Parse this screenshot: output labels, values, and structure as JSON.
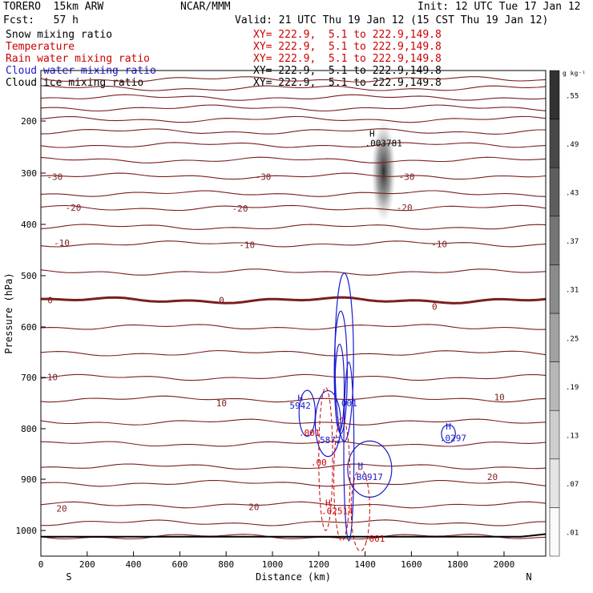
{
  "header": {
    "model": "TORERO  15km ARW",
    "org": "NCAR/MMM",
    "init": "Init: 12 UTC Tue 17 Jan 12",
    "fcst": "Fcst:   57 h",
    "valid": "Valid: 21 UTC Thu 19 Jan 12 (15 CST Thu 19 Jan 12)"
  },
  "fields": [
    {
      "name": "Snow mixing ratio",
      "xy": "XY= 222.9,  5.1 to 222.9,149.8",
      "color": "#000000"
    },
    {
      "name": "Temperature",
      "xy": "XY= 222.9,  5.1 to 222.9,149.8",
      "color": "#cc0000"
    },
    {
      "name": "Rain water mixing ratio",
      "xy": "XY= 222.9,  5.1 to 222.9,149.8",
      "color": "#cc0000"
    },
    {
      "name": "Cloud water mixing ratio",
      "xy": "XY= 222.9,  5.1 to 222.9,149.8",
      "color": "#1a1acc"
    },
    {
      "name": "Cloud ice mixing ratio",
      "xy": "XY= 222.9,  5.1 to 222.9,149.8",
      "color": "#000000"
    }
  ],
  "chart_data": {
    "type": "cross-section contour",
    "xlabel": "Distance (km)",
    "ylabel": "Pressure (hPa)",
    "xlim": [
      0,
      2180
    ],
    "ylim": [
      1045,
      105
    ],
    "x_ticks": [
      0,
      200,
      400,
      600,
      800,
      1000,
      1200,
      1400,
      1600,
      1800,
      2000
    ],
    "y_ticks": [
      200,
      300,
      400,
      500,
      600,
      700,
      800,
      900,
      1000
    ],
    "x_end_labels": {
      "left": "S",
      "right": "N"
    },
    "temperature_isotherms": [
      {
        "p": 1012,
        "label": "",
        "bold": false
      },
      {
        "p": 985,
        "label": "",
        "bold": false
      },
      {
        "p": 950,
        "label": "20",
        "bold": false
      },
      {
        "p": 908,
        "label": "",
        "bold": false
      },
      {
        "p": 875,
        "label": "20",
        "bold": false
      },
      {
        "p": 830,
        "label": "",
        "bold": false
      },
      {
        "p": 787,
        "label": "",
        "bold": false
      },
      {
        "p": 742,
        "label": "10",
        "bold": false
      },
      {
        "p": 700,
        "label": "10",
        "bold": false
      },
      {
        "p": 652,
        "label": "",
        "bold": false
      },
      {
        "p": 600,
        "label": "",
        "bold": false
      },
      {
        "p": 548,
        "label": "0",
        "bold": true
      },
      {
        "p": 493,
        "label": "",
        "bold": false
      },
      {
        "p": 438,
        "label": "-10",
        "bold": false
      },
      {
        "p": 405,
        "label": "",
        "bold": false
      },
      {
        "p": 368,
        "label": "-20",
        "bold": false
      },
      {
        "p": 340,
        "label": "",
        "bold": false
      },
      {
        "p": 306,
        "label": "-30",
        "bold": false
      },
      {
        "p": 275,
        "label": "",
        "bold": false
      },
      {
        "p": 246,
        "label": "",
        "bold": false
      },
      {
        "p": 220,
        "label": "",
        "bold": false
      },
      {
        "p": 197,
        "label": "",
        "bold": false
      },
      {
        "p": 175,
        "label": "",
        "bold": false
      },
      {
        "p": 155,
        "label": "",
        "bold": false
      },
      {
        "p": 137,
        "label": "",
        "bold": false
      },
      {
        "p": 120,
        "label": "",
        "bold": false
      }
    ],
    "isotherm_labels": [
      {
        "text": "-30",
        "x": 60,
        "p": 307
      },
      {
        "text": "-30",
        "x": 960,
        "p": 307
      },
      {
        "text": "-30",
        "x": 1580,
        "p": 307
      },
      {
        "text": "-20",
        "x": 140,
        "p": 367
      },
      {
        "text": "-20",
        "x": 860,
        "p": 369
      },
      {
        "text": "-20",
        "x": 1570,
        "p": 367
      },
      {
        "text": "-10",
        "x": 90,
        "p": 436
      },
      {
        "text": "-10",
        "x": 890,
        "p": 440
      },
      {
        "text": "-10",
        "x": 1720,
        "p": 438
      },
      {
        "text": "0",
        "x": 40,
        "p": 548
      },
      {
        "text": "0",
        "x": 780,
        "p": 548
      },
      {
        "text": "0",
        "x": 1700,
        "p": 560
      },
      {
        "text": "10",
        "x": 50,
        "p": 699
      },
      {
        "text": "10",
        "x": 780,
        "p": 750
      },
      {
        "text": "10",
        "x": 1980,
        "p": 738
      },
      {
        "text": "20",
        "x": 1950,
        "p": 895
      },
      {
        "text": "20",
        "x": 920,
        "p": 954
      },
      {
        "text": "20",
        "x": 90,
        "p": 957
      }
    ],
    "maxima_labels": [
      {
        "text": "H",
        "x": 1430,
        "p": 224,
        "color": "#000000"
      },
      {
        "text": ".003781",
        "x": 1480,
        "p": 242,
        "color": "#000000"
      },
      {
        "text": "H",
        "x": 1120,
        "p": 740,
        "color": "#1a1acc"
      },
      {
        "text": "5942",
        "x": 1120,
        "p": 755,
        "color": "#1a1acc"
      },
      {
        "text": ".001",
        "x": 1320,
        "p": 750,
        "color": "#1a1acc"
      },
      {
        "text": ".001",
        "x": 1160,
        "p": 808,
        "color": "#cc0000"
      },
      {
        "text": "5872",
        "x": 1250,
        "p": 822,
        "color": "#1a1acc"
      },
      {
        "text": "H",
        "x": 1760,
        "p": 795,
        "color": "#1a1acc"
      },
      {
        "text": ".0297",
        "x": 1780,
        "p": 818,
        "color": "#1a1acc"
      },
      {
        "text": ".00",
        "x": 1200,
        "p": 867,
        "color": "#cc0000"
      },
      {
        "text": "H",
        "x": 1380,
        "p": 873,
        "color": "#1a1acc"
      },
      {
        "text": "B0917",
        "x": 1420,
        "p": 895,
        "color": "#1a1acc"
      },
      {
        "text": "H",
        "x": 1240,
        "p": 946,
        "color": "#cc0000"
      },
      {
        "text": ".02514",
        "x": 1280,
        "p": 962,
        "color": "#cc0000"
      },
      {
        "text": ".001",
        "x": 1440,
        "p": 1016,
        "color": "#cc0000"
      }
    ],
    "snow_mixing_ratio": {
      "max_location": {
        "x": 1480,
        "p": 245
      },
      "max_value": ".003781",
      "p_range": [
        200,
        395
      ]
    },
    "colorbar": {
      "unit": "g kg⁻¹",
      "ticks": [
        ".01",
        ".07",
        ".13",
        ".19",
        ".25",
        ".31",
        ".37",
        ".43",
        ".49",
        ".55"
      ]
    }
  }
}
